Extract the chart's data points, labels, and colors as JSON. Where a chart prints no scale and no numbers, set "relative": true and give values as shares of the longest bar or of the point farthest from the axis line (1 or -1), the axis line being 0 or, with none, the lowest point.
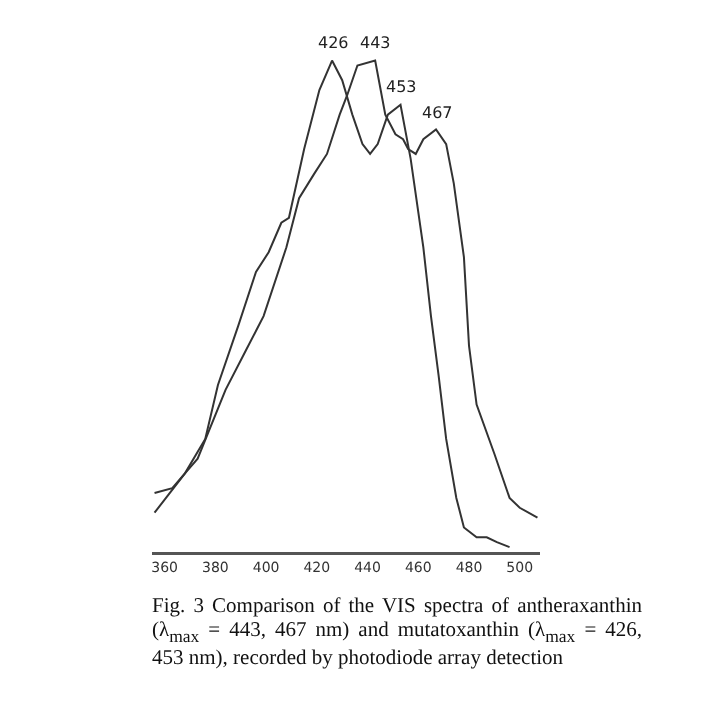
{
  "chart_data": {
    "type": "line",
    "relative": true,
    "xlim": [
      355,
      508
    ],
    "xticks": [
      360,
      380,
      400,
      420,
      440,
      460,
      480,
      500
    ],
    "marker": "none",
    "line_style": "solid",
    "series": [
      {
        "color": "#333333",
        "x": [
          356,
          368,
          376,
          381,
          389,
          396,
          401,
          406,
          409,
          415,
          421,
          426,
          430,
          434,
          438,
          441,
          444,
          448,
          453,
          457,
          462,
          465,
          468,
          471,
          475,
          478,
          483,
          487,
          491,
          496
        ],
        "values": [
          0.08,
          0.16,
          0.23,
          0.34,
          0.46,
          0.57,
          0.61,
          0.67,
          0.68,
          0.82,
          0.94,
          1.0,
          0.96,
          0.89,
          0.83,
          0.81,
          0.83,
          0.89,
          0.91,
          0.8,
          0.62,
          0.48,
          0.36,
          0.23,
          0.11,
          0.05,
          0.03,
          0.03,
          0.02,
          0.01
        ]
      },
      {
        "color": "#333333",
        "x": [
          356,
          363,
          368,
          373,
          384,
          392,
          399,
          408,
          413,
          419,
          424,
          429,
          432,
          436,
          443,
          447,
          451,
          454,
          456,
          459,
          462,
          467,
          471,
          474,
          478,
          480,
          483,
          490,
          496,
          500,
          507
        ],
        "values": [
          0.12,
          0.13,
          0.16,
          0.19,
          0.33,
          0.41,
          0.48,
          0.62,
          0.72,
          0.77,
          0.81,
          0.89,
          0.93,
          0.99,
          1.0,
          0.89,
          0.85,
          0.84,
          0.82,
          0.81,
          0.84,
          0.86,
          0.83,
          0.75,
          0.6,
          0.42,
          0.3,
          0.2,
          0.11,
          0.09,
          0.07
        ]
      }
    ],
    "annotations": [
      {
        "text": "426",
        "x": 426,
        "y": 1.0
      },
      {
        "text": "443",
        "x": 443,
        "y": 1.0
      },
      {
        "text": "453",
        "x": 453,
        "y": 0.91
      },
      {
        "text": "467",
        "x": 467,
        "y": 0.86
      },
      "Fig. 3 Comparison of the VIS spectra of antheraxanthin (λ$_{max}$ = 443, 467 nm) and mutatoxanthin (λ$_{max}$ = 426, 453 nm), recorded by photodiode array detection"
    ]
  }
}
